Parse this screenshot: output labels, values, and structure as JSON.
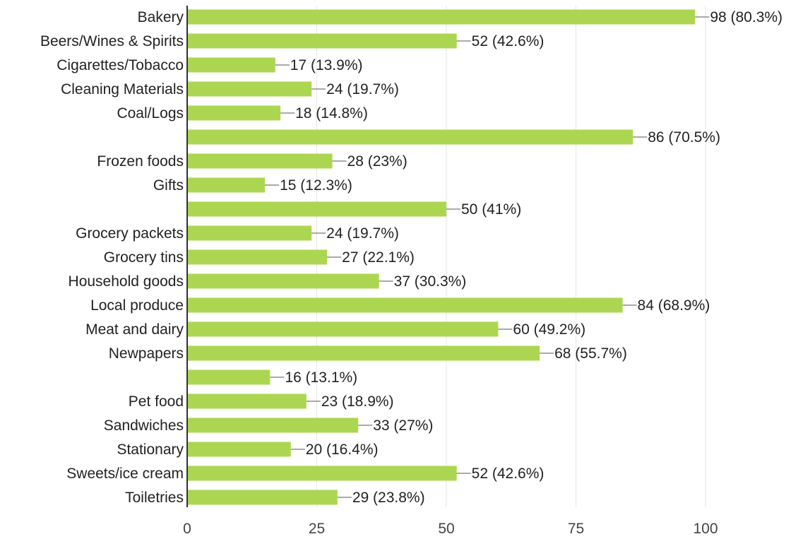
{
  "chart_data": {
    "type": "bar",
    "orientation": "horizontal",
    "categories": [
      "Bakery",
      "Beers/Wines & Spirits",
      "Cigarettes/Tobacco",
      "Cleaning Materials",
      "Coal/Logs",
      "",
      "Frozen foods",
      "Gifts",
      "",
      "Grocery packets",
      "Grocery tins",
      "Household goods",
      "Local produce",
      "Meat and dairy",
      "Newpapers",
      "",
      "Pet food",
      "Sandwiches",
      "Stationary",
      "Sweets/ice cream",
      "Toiletries"
    ],
    "values": [
      98,
      52,
      17,
      24,
      18,
      86,
      28,
      15,
      50,
      24,
      27,
      37,
      84,
      60,
      68,
      16,
      23,
      33,
      20,
      52,
      29
    ],
    "data_labels": [
      "98 (80.3%)",
      "52 (42.6%)",
      "17 (13.9%)",
      "24 (19.7%)",
      "18 (14.8%)",
      "86 (70.5%)",
      "28 (23%)",
      "15 (12.3%)",
      "50 (41%)",
      "24 (19.7%)",
      "27 (22.1%)",
      "37 (30.3%)",
      "84 (68.9%)",
      "60 (49.2%)",
      "68 (55.7%)",
      "16 (13.1%)",
      "23 (18.9%)",
      "33 (27%)",
      "20 (16.4%)",
      "52 (42.6%)",
      "29 (23.8%)"
    ],
    "xlim": [
      0,
      100
    ],
    "xticks": [
      0,
      25,
      50,
      75,
      100
    ],
    "tick_labels": [
      "0",
      "25",
      "50",
      "75",
      "100"
    ],
    "grid": true,
    "legend": "none",
    "bar_color": "#acd651"
  }
}
